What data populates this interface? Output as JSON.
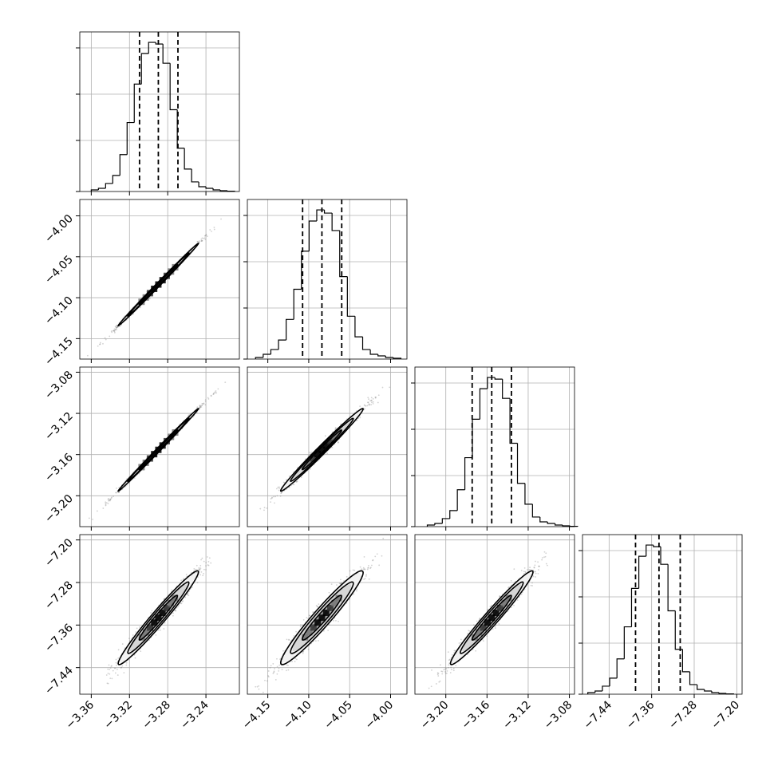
{
  "chart_data": {
    "type": "corner",
    "colors": {
      "line": "#000000",
      "grid": "#b0b0b0",
      "samples": "#7f7f7f"
    },
    "grid": true,
    "quantiles": [
      0.16,
      0.5,
      0.84
    ],
    "parameters": [
      {
        "range": [
          -3.372,
          -3.205
        ],
        "ticks": [
          -3.36,
          -3.32,
          -3.28,
          -3.24
        ],
        "tick_labels": [
          "−3.36",
          "−3.32",
          "−3.28",
          "−3.24"
        ],
        "quantile_values": [
          -3.3095,
          -3.2898,
          -3.2693
        ],
        "hist_edges_start": -3.36,
        "hist_bin_width": 0.0075,
        "hist_counts": [
          1,
          2,
          5,
          10,
          23,
          43,
          67,
          86,
          93,
          92,
          80,
          51,
          27,
          14,
          6,
          3,
          2,
          1,
          0.5,
          0.2
        ]
      },
      {
        "range": [
          -4.175,
          -3.98
        ],
        "ticks": [
          -4.15,
          -4.1,
          -4.05,
          -4.0
        ],
        "tick_labels": [
          "−4.15",
          "−4.10",
          "−4.05",
          "−4.00"
        ],
        "quantile_values": [
          -4.1075,
          -4.0839,
          -4.0597
        ],
        "hist_edges_start": -4.165,
        "hist_bin_width": 0.00935,
        "hist_counts": [
          1,
          3,
          6,
          12,
          25,
          44,
          68,
          87,
          94,
          92,
          81,
          52,
          27,
          14,
          6,
          3,
          2,
          1,
          0.5
        ]
      },
      {
        "range": [
          -3.23,
          -3.075
        ],
        "ticks": [
          -3.2,
          -3.16,
          -3.12,
          -3.08
        ],
        "tick_labels": [
          "−3.20",
          "−3.16",
          "−3.12",
          "−3.08"
        ],
        "quantile_values": [
          -3.1744,
          -3.1554,
          -3.1363
        ],
        "hist_edges_start": -3.218,
        "hist_bin_width": 0.0073,
        "hist_counts": [
          1,
          2,
          5,
          10,
          23,
          43,
          67,
          86,
          93,
          92,
          80,
          52,
          27,
          14,
          6,
          3,
          2,
          1,
          0.5,
          0.2
        ]
      },
      {
        "range": [
          -7.49,
          -7.19
        ],
        "ticks": [
          -7.44,
          -7.36,
          -7.28,
          -7.2
        ],
        "tick_labels": [
          "−7.44",
          "−7.36",
          "−7.28",
          "−7.20"
        ],
        "quantile_values": [
          -7.3903,
          -7.3462,
          -7.3063
        ],
        "hist_edges_start": -7.48,
        "hist_bin_width": 0.0137,
        "hist_counts": [
          1,
          2,
          5,
          10,
          22,
          42,
          66,
          86,
          93,
          92,
          81,
          52,
          28,
          14,
          6,
          3,
          2,
          1,
          0.5,
          0.2
        ]
      }
    ],
    "pairs": [
      {
        "x": 0,
        "y": 1,
        "mean": [
          -3.2898,
          -4.0839
        ],
        "sd": [
          0.02,
          0.024
        ],
        "corr": 0.998
      },
      {
        "x": 0,
        "y": 2,
        "mean": [
          -3.2898,
          -3.1554
        ],
        "sd": [
          0.02,
          0.0191
        ],
        "corr": 0.998
      },
      {
        "x": 1,
        "y": 2,
        "mean": [
          -4.0839,
          -3.1554
        ],
        "sd": [
          0.024,
          0.0191
        ],
        "corr": 0.99
      },
      {
        "x": 0,
        "y": 3,
        "mean": [
          -3.2898,
          -7.3462
        ],
        "sd": [
          0.02,
          0.042
        ],
        "corr": 0.975
      },
      {
        "x": 1,
        "y": 3,
        "mean": [
          -4.0839,
          -7.3462
        ],
        "sd": [
          0.024,
          0.042
        ],
        "corr": 0.96
      },
      {
        "x": 2,
        "y": 3,
        "mean": [
          -3.1554,
          -7.3462
        ],
        "sd": [
          0.0191,
          0.042
        ],
        "corr": 0.975
      }
    ],
    "contour_levels_sigma": [
      0.5,
      1.0,
      1.5,
      2.0
    ]
  }
}
